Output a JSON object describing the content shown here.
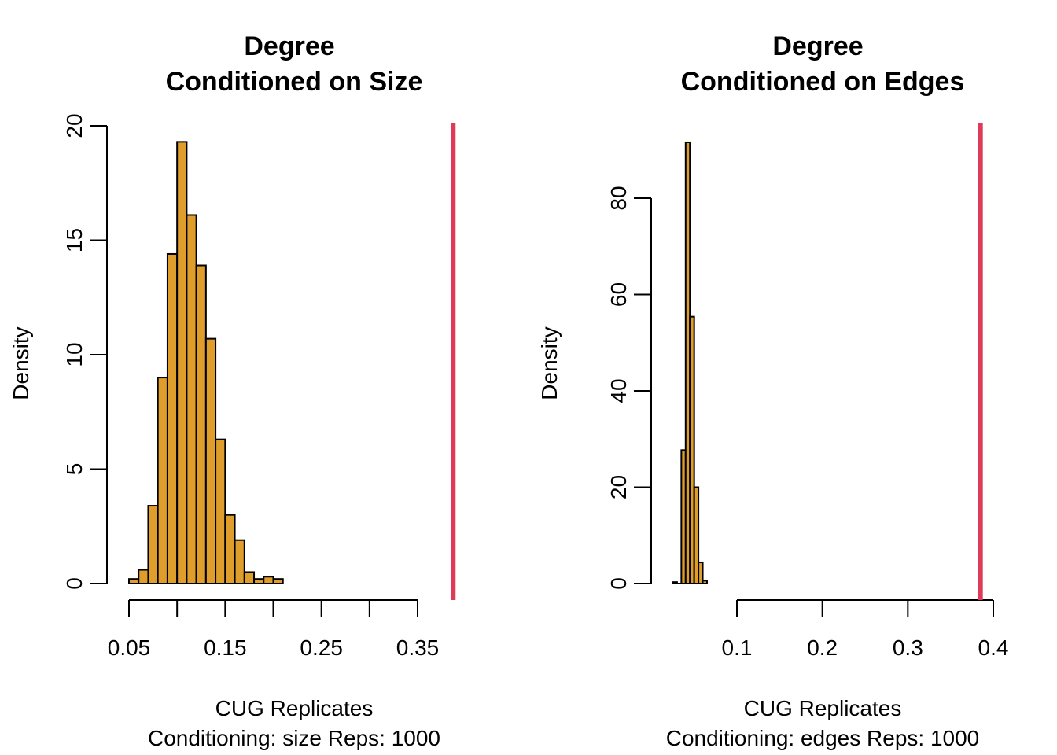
{
  "chart_data": [
    {
      "type": "bar",
      "title": [
        "Degree",
        "Conditioned on Size"
      ],
      "xlabel": [
        "CUG Replicates",
        "Conditioning: size Reps: 1000"
      ],
      "ylabel": "Density",
      "xticks": [
        0.05,
        0.1,
        0.15,
        0.2,
        0.25,
        0.3,
        0.35
      ],
      "xtick_labels": [
        "0.05",
        "",
        "0.15",
        "",
        "0.25",
        "",
        "0.35"
      ],
      "yticks": [
        0,
        5,
        10,
        15,
        20
      ],
      "xlim": [
        0.05,
        0.35
      ],
      "ylim": [
        0,
        20
      ],
      "bin_start": 0.05,
      "bin_width": 0.01,
      "values": [
        0.2,
        0.6,
        3.4,
        9.0,
        14.4,
        19.3,
        16.1,
        13.9,
        10.7,
        6.3,
        3.0,
        1.9,
        0.5,
        0.2,
        0.3,
        0.2
      ],
      "observed": 0.387,
      "colors": {
        "bar": "#DF9E2C",
        "observed": "#DF3A5A"
      }
    },
    {
      "type": "bar",
      "title": [
        "Degree",
        "Conditioned on Edges"
      ],
      "xlabel": [
        "CUG Replicates",
        "Conditioning: edges Reps: 1000"
      ],
      "ylabel": "Density",
      "xticks": [
        0.1,
        0.2,
        0.3,
        0.4
      ],
      "xtick_labels": [
        "0.1",
        "0.2",
        "0.3",
        "0.4"
      ],
      "yticks": [
        0,
        20,
        40,
        60,
        80
      ],
      "xlim": [
        0.1,
        0.4
      ],
      "ylim": [
        0,
        80
      ],
      "bin_start": 0.025,
      "bin_width": 0.005,
      "values": [
        0.3,
        0,
        27.7,
        91.6,
        55.4,
        20.0,
        4.4,
        0.6
      ],
      "observed": 0.385,
      "colors": {
        "bar": "#DF9E2C",
        "observed": "#DF3A5A"
      }
    }
  ]
}
